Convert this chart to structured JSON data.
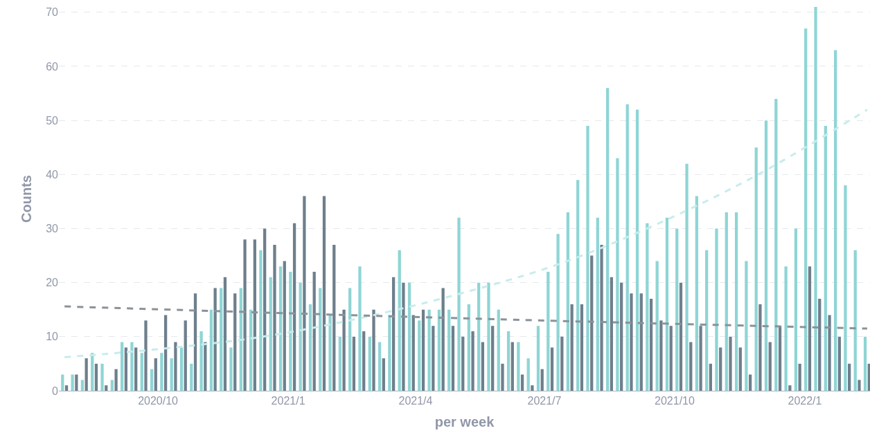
{
  "chart_data": {
    "type": "bar",
    "xlabel": "per week",
    "ylabel": "Counts",
    "x": [
      "2020-07-27",
      "2020-08-03",
      "2020-08-10",
      "2020-08-17",
      "2020-08-24",
      "2020-08-31",
      "2020-09-07",
      "2020-09-14",
      "2020-09-21",
      "2020-09-28",
      "2020-10-05",
      "2020-10-12",
      "2020-10-19",
      "2020-10-26",
      "2020-11-02",
      "2020-11-09",
      "2020-11-16",
      "2020-11-23",
      "2020-11-30",
      "2020-12-07",
      "2020-12-14",
      "2020-12-21",
      "2020-12-28",
      "2021-01-04",
      "2021-01-11",
      "2021-01-18",
      "2021-01-25",
      "2021-02-01",
      "2021-02-08",
      "2021-02-15",
      "2021-02-22",
      "2021-03-01",
      "2021-03-08",
      "2021-03-15",
      "2021-03-22",
      "2021-03-29",
      "2021-04-05",
      "2021-04-12",
      "2021-04-19",
      "2021-04-26",
      "2021-05-03",
      "2021-05-10",
      "2021-05-17",
      "2021-05-24",
      "2021-05-31",
      "2021-06-07",
      "2021-06-14",
      "2021-06-21",
      "2021-06-28",
      "2021-07-05",
      "2021-07-12",
      "2021-07-19",
      "2021-07-26",
      "2021-08-02",
      "2021-08-09",
      "2021-08-16",
      "2021-08-23",
      "2021-08-30",
      "2021-09-06",
      "2021-09-13",
      "2021-09-20",
      "2021-09-27",
      "2021-10-04",
      "2021-10-11",
      "2021-10-18",
      "2021-10-25",
      "2021-11-01",
      "2021-11-08",
      "2021-11-15",
      "2021-11-22",
      "2021-11-29",
      "2021-12-06",
      "2021-12-13",
      "2021-12-20",
      "2021-12-27",
      "2022-01-03",
      "2022-01-10",
      "2022-01-17",
      "2022-01-24",
      "2022-01-31",
      "2022-02-07",
      "2022-02-14"
    ],
    "xlim": [
      "2020-07-23",
      "2022-02-16"
    ],
    "xticks": [
      {
        "value": "2020-10-01",
        "label": "2020/10"
      },
      {
        "value": "2021-01-01",
        "label": "2021/1"
      },
      {
        "value": "2021-04-01",
        "label": "2021/4"
      },
      {
        "value": "2021-07-01",
        "label": "2021/7"
      },
      {
        "value": "2021-10-01",
        "label": "2021/10"
      },
      {
        "value": "2022-01-01",
        "label": "2022/1"
      }
    ],
    "ylim": [
      0,
      71
    ],
    "yticks": [
      0,
      10,
      20,
      30,
      40,
      50,
      60,
      70
    ],
    "grid": "y",
    "series": [
      {
        "color": "#8fd5d5",
        "values": [
          3,
          3,
          2,
          7,
          5,
          2,
          9,
          9,
          7,
          4,
          7,
          6,
          8,
          5,
          11,
          15,
          19,
          8,
          19,
          15,
          26,
          21,
          23,
          22,
          20,
          16,
          19,
          14,
          10,
          19,
          23,
          10,
          9,
          14,
          26,
          20,
          13,
          15,
          15,
          15,
          32,
          16,
          20,
          20,
          15,
          11,
          9,
          6,
          12,
          22,
          29,
          33,
          39,
          49,
          32,
          56,
          43,
          53,
          52,
          31,
          24,
          32,
          30,
          42,
          36,
          26,
          30,
          33,
          33,
          24,
          45,
          50,
          54,
          23,
          30,
          67,
          71,
          49,
          63,
          38,
          26,
          10
        ]
      },
      {
        "color": "#6e7f8c",
        "values": [
          1,
          3,
          6,
          5,
          1,
          4,
          8,
          8,
          13,
          6,
          14,
          9,
          13,
          18,
          9,
          19,
          21,
          18,
          28,
          28,
          30,
          27,
          24,
          31,
          36,
          22,
          36,
          27,
          15,
          10,
          11,
          15,
          6,
          21,
          20,
          14,
          15,
          12,
          19,
          12,
          10,
          11,
          9,
          12,
          5,
          9,
          3,
          1,
          4,
          8,
          10,
          16,
          16,
          25,
          27,
          21,
          20,
          18,
          18,
          17,
          13,
          12,
          20,
          9,
          12,
          5,
          8,
          10,
          8,
          3,
          16,
          9,
          12,
          1,
          5,
          23,
          17,
          14,
          10,
          5,
          2,
          5
        ]
      },
      {
        "type": "line",
        "line_style": "dashed",
        "color": "#c8ecec",
        "x": [
          "2020-07-27",
          "2020-10-05",
          "2020-12-14",
          "2021-02-22",
          "2021-05-03",
          "2021-07-12",
          "2021-09-20",
          "2021-11-29",
          "2022-02-14"
        ],
        "values": [
          6.2,
          7.8,
          10,
          13.5,
          18,
          23.5,
          31,
          40,
          52
        ]
      },
      {
        "type": "line",
        "line_style": "dashed",
        "color": "#8a9299",
        "x": [
          "2020-07-27",
          "2021-05-03",
          "2022-02-14"
        ],
        "values": [
          15.6,
          13.4,
          11.5
        ]
      }
    ]
  }
}
